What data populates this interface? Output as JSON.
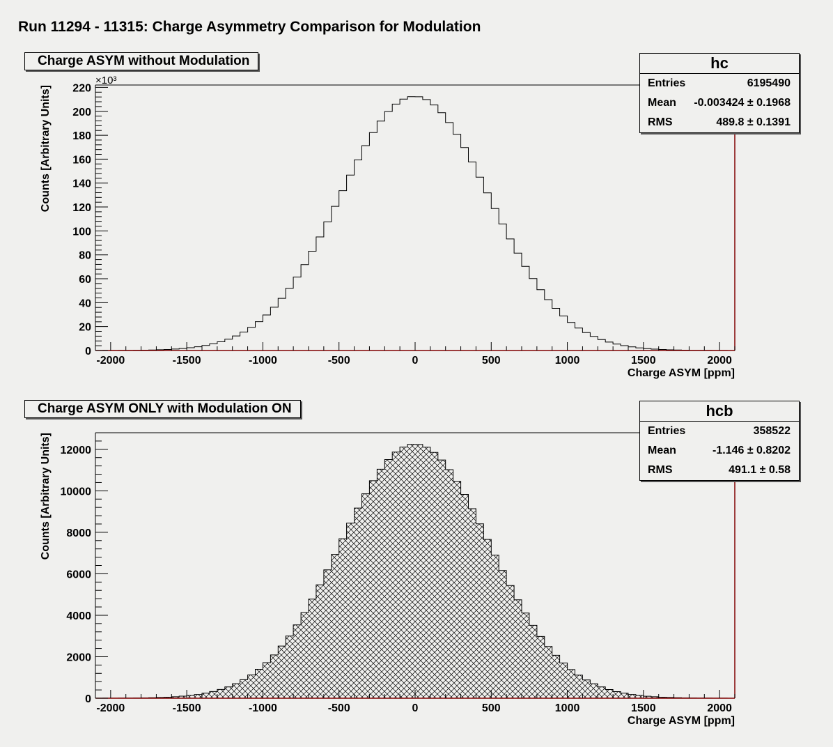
{
  "page": {
    "title": "Run 11294 - 11315: Charge Asymmetry Comparison for Modulation"
  },
  "colors": {
    "frame": "#800000",
    "line": "#000000",
    "background": "#f0f0ee"
  },
  "panels": [
    {
      "title": "Charge ASYM without Modulation",
      "stats": {
        "name": "hc",
        "rows": [
          {
            "label": "Entries",
            "value": "6195490"
          },
          {
            "label": "Mean",
            "value": "-0.003424 ± 0.1968"
          },
          {
            "label": "RMS",
            "value": "489.8 ± 0.1391"
          }
        ]
      }
    },
    {
      "title": "Charge ASYM ONLY with Modulation ON",
      "stats": {
        "name": "hcb",
        "rows": [
          {
            "label": "Entries",
            "value": "358522"
          },
          {
            "label": "Mean",
            "value": "-1.146 ± 0.8202"
          },
          {
            "label": "RMS",
            "value": "491.1 ±   0.58"
          }
        ]
      }
    }
  ],
  "chart_data": [
    {
      "type": "bar",
      "histogram": "hc",
      "title": "Charge ASYM without Modulation",
      "xlabel": "Charge ASYM [ppm]",
      "ylabel": "Counts [Arbitrary Units]",
      "y_multiplier_label": "×10³",
      "xlim": [
        -2100,
        2100
      ],
      "ylim": [
        0,
        222
      ],
      "xticks": [
        -2000,
        -1500,
        -1000,
        -500,
        0,
        500,
        1000,
        1500,
        2000
      ],
      "yticks": [
        0,
        20,
        40,
        60,
        80,
        100,
        120,
        140,
        160,
        180,
        200,
        220
      ],
      "bin_width": 50,
      "fill": "none",
      "distribution": {
        "mean": -3.4,
        "rms": 489.8,
        "peak": 212.5
      }
    },
    {
      "type": "bar",
      "histogram": "hcb",
      "title": "Charge ASYM ONLY with Modulation ON",
      "xlabel": "Charge ASYM [ppm]",
      "ylabel": "Counts [Arbitrary Units]",
      "xlim": [
        -2100,
        2100
      ],
      "ylim": [
        0,
        12800
      ],
      "xticks": [
        -2000,
        -1500,
        -1000,
        -500,
        0,
        500,
        1000,
        1500,
        2000
      ],
      "yticks": [
        0,
        2000,
        4000,
        6000,
        8000,
        10000,
        12000
      ],
      "bin_width": 50,
      "fill": "crosshatch",
      "distribution": {
        "mean": -1.1,
        "rms": 491.1,
        "peak": 12250
      }
    }
  ]
}
